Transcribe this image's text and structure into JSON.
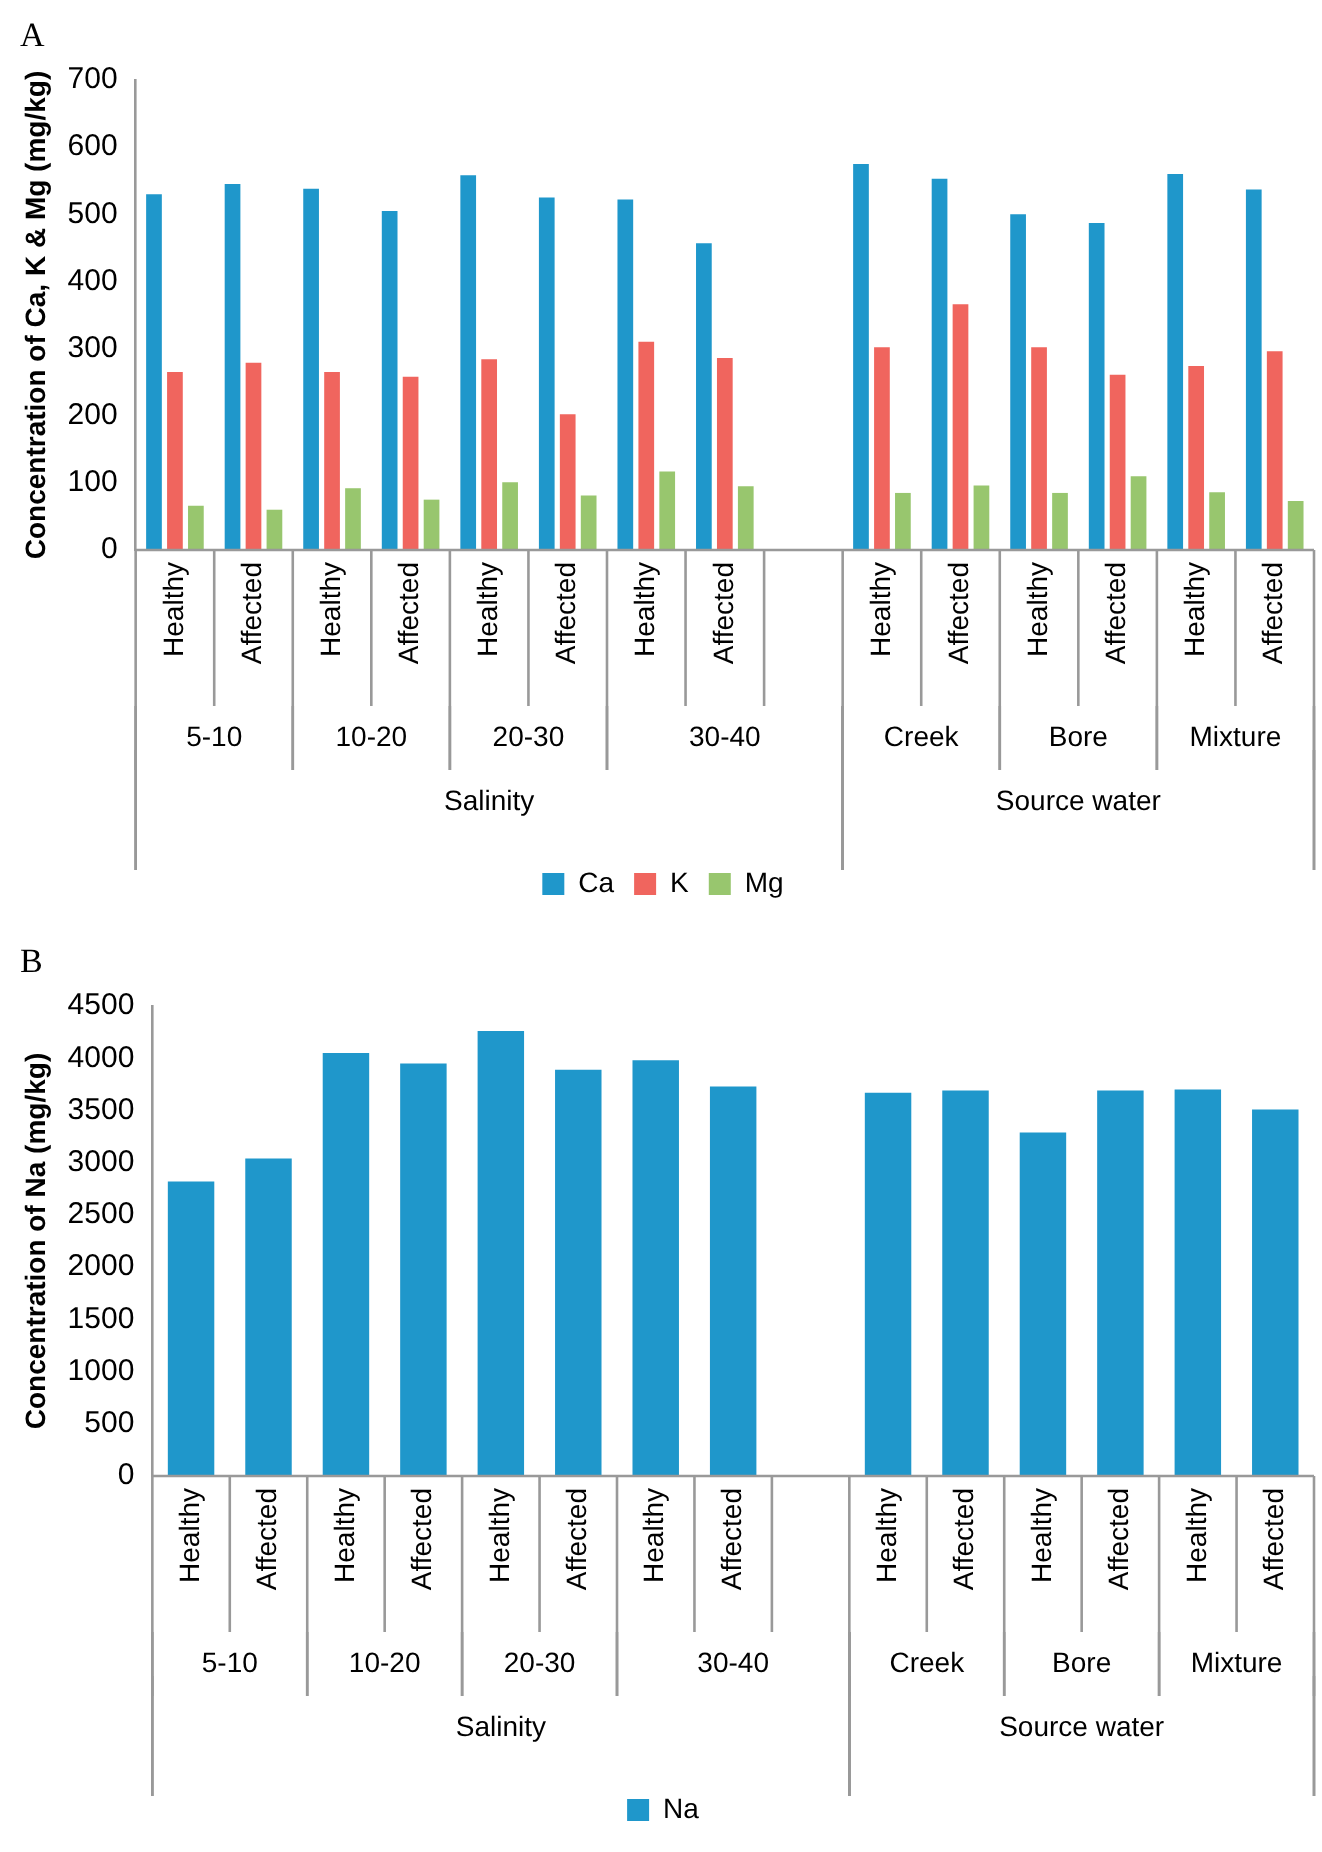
{
  "chart_data": [
    {
      "type": "bar",
      "title": "A",
      "ylabel": "Concentration of Ca, K & Mg (mg/kg)",
      "categories": [
        "Healthy",
        "Affected",
        "Healthy",
        "Affected",
        "Healthy",
        "Affected",
        "Healthy",
        "Affected",
        null,
        "Healthy",
        "Affected",
        "Healthy",
        "Affected",
        "Healthy",
        "Affected"
      ],
      "series": [
        {
          "name": "Ca",
          "color": "#1f97cb",
          "values": [
            530,
            545,
            538,
            505,
            558,
            525,
            522,
            457,
            null,
            575,
            553,
            500,
            487,
            560,
            537
          ]
        },
        {
          "name": "K",
          "color": "#f0655e",
          "values": [
            265,
            279,
            265,
            258,
            284,
            202,
            310,
            286,
            null,
            302,
            366,
            302,
            261,
            274,
            296
          ]
        },
        {
          "name": "Mg",
          "color": "#98c66e",
          "values": [
            66,
            60,
            92,
            75,
            101,
            81,
            117,
            95,
            null,
            85,
            96,
            85,
            110,
            86,
            73
          ]
        }
      ],
      "ylim": [
        0,
        700
      ],
      "yticks": [
        0,
        100,
        200,
        300,
        400,
        500,
        600,
        700
      ],
      "grid": false,
      "legend": "bottom",
      "annotations": [
        "5-10",
        "10-20",
        "20-30",
        "30-40",
        "Creek",
        "Bore",
        "Mixture",
        "Salinity",
        "Source water"
      ]
    },
    {
      "type": "bar",
      "title": "B",
      "ylabel": "Concentration of Na (mg/kg)",
      "categories": [
        "Healthy",
        "Affected",
        "Healthy",
        "Affected",
        "Healthy",
        "Affected",
        "Healthy",
        "Affected",
        null,
        "Healthy",
        "Affected",
        "Healthy",
        "Affected",
        "Healthy",
        "Affected"
      ],
      "series": [
        {
          "name": "Na",
          "color": "#1f97cb",
          "values": [
            2820,
            3040,
            4050,
            3950,
            4260,
            3890,
            3980,
            3730,
            null,
            3670,
            3690,
            3290,
            3690,
            3700,
            3510
          ]
        }
      ],
      "ylim": [
        0,
        4500
      ],
      "yticks": [
        0,
        500,
        1000,
        1500,
        2000,
        2500,
        3000,
        3500,
        4000,
        4500
      ],
      "grid": false,
      "legend": "bottom",
      "annotations": [
        "5-10",
        "10-20",
        "20-30",
        "30-40",
        "Creek",
        "Bore",
        "Mixture",
        "Salinity",
        "Source water"
      ]
    }
  ]
}
